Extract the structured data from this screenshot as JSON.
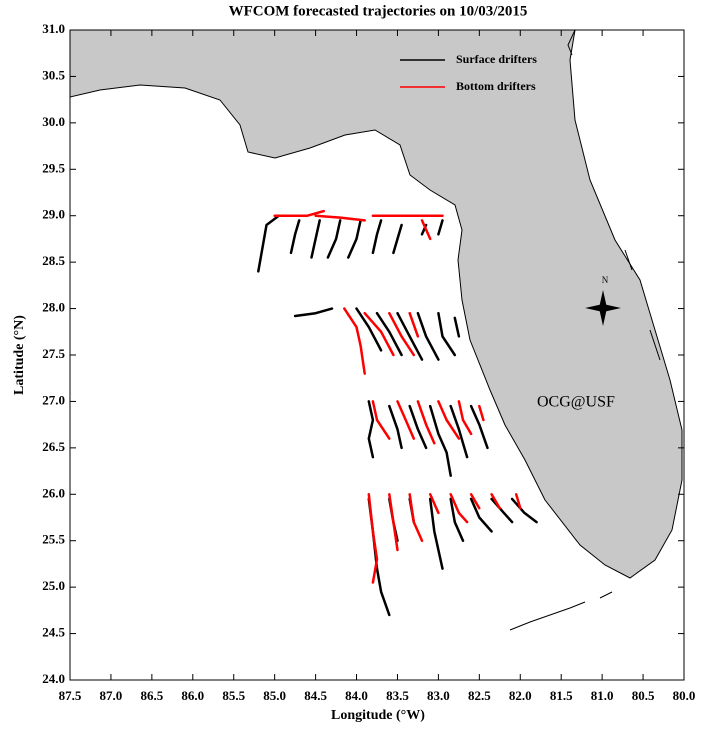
{
  "chart_data": {
    "type": "trajectory",
    "title": "WFCOM forecasted trajectories on 10/03/2015",
    "x_label": "Longitude (°W)",
    "y_label": "Latitude (°N)",
    "annotation": "OCG@USF",
    "annotation_color": "#ff0000",
    "compass_label": "N",
    "legend": "upper right",
    "xlim": [
      87.5,
      80.0
    ],
    "ylim": [
      24.0,
      31.0
    ],
    "xticks": [
      87.5,
      {
        "value": 87,
        "label": "87.0"
      },
      86.5,
      {
        "value": 86,
        "label": "86.0"
      },
      85.5,
      {
        "value": 85,
        "label": "85.0"
      },
      84.5,
      {
        "value": 84,
        "label": "84.0"
      },
      83.5,
      {
        "value": 83,
        "label": "83.0"
      },
      82.5,
      {
        "value": 82,
        "label": "82.0"
      },
      81.5,
      {
        "value": 81,
        "label": "81.0"
      },
      80.5,
      {
        "value": 80,
        "label": "80.0"
      }
    ],
    "yticks": [
      {
        "value": 24,
        "label": "24.0"
      },
      24.5,
      {
        "value": 25,
        "label": "25.0"
      },
      25.5,
      {
        "value": 26,
        "label": "26.0"
      },
      26.5,
      {
        "value": 27,
        "label": "27.0"
      },
      27.5,
      {
        "value": 28,
        "label": "28.0"
      },
      28.5,
      {
        "value": 29,
        "label": "29.0"
      },
      29.5,
      {
        "value": 30,
        "label": "30.0"
      },
      30.5,
      {
        "value": 31,
        "label": "31.0"
      }
    ],
    "series": [
      {
        "name": "Surface drifters",
        "color": "#000000",
        "x": [
          84.95,
          85.1,
          85.15,
          85.2,
          null,
          84.7,
          84.75,
          84.8,
          null,
          84.45,
          84.5,
          84.55,
          null,
          84.2,
          84.25,
          84.35,
          null,
          83.95,
          84.0,
          84.1,
          null,
          83.7,
          83.75,
          83.8,
          null,
          83.45,
          83.5,
          83.55,
          null,
          83.15,
          83.2,
          null,
          82.95,
          83.0,
          null,
          84.75,
          84.5,
          84.3,
          null,
          84.0,
          83.85,
          83.7,
          null,
          83.75,
          83.6,
          83.45,
          null,
          83.5,
          83.35,
          83.2,
          null,
          83.25,
          83.15,
          83.0,
          null,
          83.0,
          82.95,
          82.8,
          null,
          82.8,
          82.75,
          null,
          83.85,
          83.8,
          83.85,
          83.8,
          null,
          83.6,
          83.5,
          83.45,
          null,
          83.35,
          83.25,
          83.15,
          null,
          83.1,
          83.0,
          82.9,
          82.85,
          null,
          82.85,
          82.75,
          82.65,
          null,
          82.6,
          82.5,
          82.4,
          null,
          83.85,
          83.8,
          83.75,
          83.7,
          83.6,
          null,
          83.6,
          83.55,
          83.5,
          null,
          83.35,
          83.3,
          null,
          83.1,
          83.05,
          82.95,
          null,
          82.85,
          82.8,
          82.7,
          null,
          82.6,
          82.5,
          82.35,
          null,
          82.35,
          82.2,
          82.1,
          null,
          82.1,
          81.95,
          81.8
        ],
        "values": [
          29.0,
          28.9,
          28.65,
          28.4,
          null,
          28.95,
          28.8,
          28.6,
          null,
          28.95,
          28.75,
          28.55,
          null,
          28.95,
          28.75,
          28.55,
          null,
          28.95,
          28.75,
          28.55,
          null,
          28.95,
          28.8,
          28.6,
          null,
          28.9,
          28.75,
          28.6,
          null,
          28.9,
          28.8,
          null,
          28.95,
          28.8,
          null,
          27.92,
          27.95,
          28.0,
          null,
          28.0,
          27.8,
          27.55,
          null,
          27.95,
          27.75,
          27.5,
          null,
          27.95,
          27.7,
          27.45,
          null,
          27.95,
          27.7,
          27.45,
          null,
          27.95,
          27.7,
          27.5,
          null,
          27.9,
          27.7,
          null,
          27.0,
          26.8,
          26.6,
          26.4,
          null,
          26.95,
          26.7,
          26.5,
          null,
          26.95,
          26.7,
          26.5,
          null,
          26.95,
          26.65,
          26.45,
          26.2,
          null,
          26.95,
          26.7,
          26.4,
          null,
          26.95,
          26.75,
          26.5,
          null,
          25.95,
          25.6,
          25.2,
          24.95,
          24.7,
          null,
          25.95,
          25.7,
          25.5,
          null,
          25.95,
          25.7,
          null,
          25.95,
          25.6,
          25.2,
          null,
          25.95,
          25.7,
          25.5,
          null,
          25.95,
          25.75,
          25.6,
          null,
          25.95,
          25.8,
          25.7,
          null,
          25.95,
          25.8,
          25.7
        ]
      },
      {
        "name": "Bottom drifters",
        "color": "#ff0000",
        "x": [
          85.0,
          84.8,
          84.6,
          84.4,
          null,
          84.5,
          84.2,
          83.9,
          null,
          83.8,
          83.5,
          83.2,
          82.95,
          null,
          83.2,
          83.15,
          83.1,
          null,
          84.15,
          84.0,
          83.95,
          83.9,
          null,
          83.9,
          83.7,
          83.55,
          null,
          83.6,
          83.45,
          83.3,
          null,
          83.35,
          83.25,
          null,
          83.8,
          83.75,
          83.6,
          null,
          83.5,
          83.4,
          83.3,
          null,
          83.25,
          83.15,
          83.05,
          null,
          83.0,
          82.9,
          82.75,
          null,
          82.75,
          82.7,
          82.6,
          null,
          82.5,
          82.45,
          null,
          83.85,
          83.8,
          83.75,
          83.8,
          null,
          83.6,
          83.55,
          83.5,
          null,
          83.35,
          83.3,
          83.2,
          null,
          83.1,
          83.0,
          null,
          82.85,
          82.75,
          82.65,
          null,
          82.6,
          82.5,
          null,
          82.35,
          82.25,
          null,
          82.05,
          82.0
        ],
        "values": [
          29.0,
          29.0,
          29.0,
          29.05,
          null,
          29.0,
          28.98,
          28.95,
          null,
          29.0,
          29.0,
          29.0,
          29.0,
          null,
          28.95,
          28.85,
          28.75,
          null,
          28.0,
          27.8,
          27.6,
          27.3,
          null,
          27.95,
          27.75,
          27.5,
          null,
          27.95,
          27.7,
          27.5,
          null,
          27.95,
          27.7,
          null,
          27.0,
          26.8,
          26.6,
          null,
          27.0,
          26.8,
          26.6,
          null,
          27.0,
          26.75,
          26.55,
          null,
          27.0,
          26.8,
          26.6,
          null,
          27.0,
          26.8,
          26.65,
          null,
          26.95,
          26.8,
          null,
          26.0,
          25.6,
          25.3,
          25.05,
          null,
          26.0,
          25.7,
          25.4,
          null,
          26.0,
          25.7,
          25.5,
          null,
          26.0,
          25.8,
          null,
          26.0,
          25.8,
          25.7,
          null,
          26.0,
          25.85,
          null,
          26.0,
          25.85,
          null,
          26.0,
          25.85
        ]
      }
    ]
  }
}
